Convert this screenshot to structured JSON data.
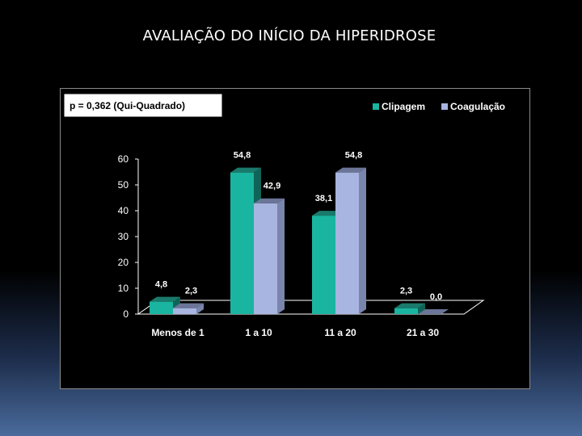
{
  "slide": {
    "title": "AVALIAÇÃO DO INÍCIO DA HIPERIDROSE"
  },
  "chart_data": {
    "type": "bar",
    "annotation": "p = 0,362 (Qui-Quadrado)",
    "categories": [
      "Menos de 1",
      "1 a 10",
      "11 a 20",
      "21 a 30"
    ],
    "series": [
      {
        "name": "Clipagem",
        "values": [
          4.8,
          54.8,
          38.1,
          2.3
        ],
        "labels": [
          "4,8",
          "54,8",
          "38,1",
          "2,3"
        ]
      },
      {
        "name": "Coagulação",
        "values": [
          2.3,
          42.9,
          54.8,
          0.0
        ],
        "labels": [
          "2,3",
          "42,9",
          "54,8",
          "0,0"
        ]
      }
    ],
    "ylim": [
      0,
      60
    ],
    "yticks": [
      0,
      10,
      20,
      30,
      40,
      50,
      60
    ],
    "legend_position": "top-right",
    "grid": false,
    "colors": {
      "Clipagem": {
        "front": "#1ab5a0",
        "top": "#1a7a6c",
        "side": "#0f6458"
      },
      "Coagulação": {
        "front": "#a7b5e0",
        "top": "#6b7598",
        "side": "#7a85ad"
      }
    }
  }
}
